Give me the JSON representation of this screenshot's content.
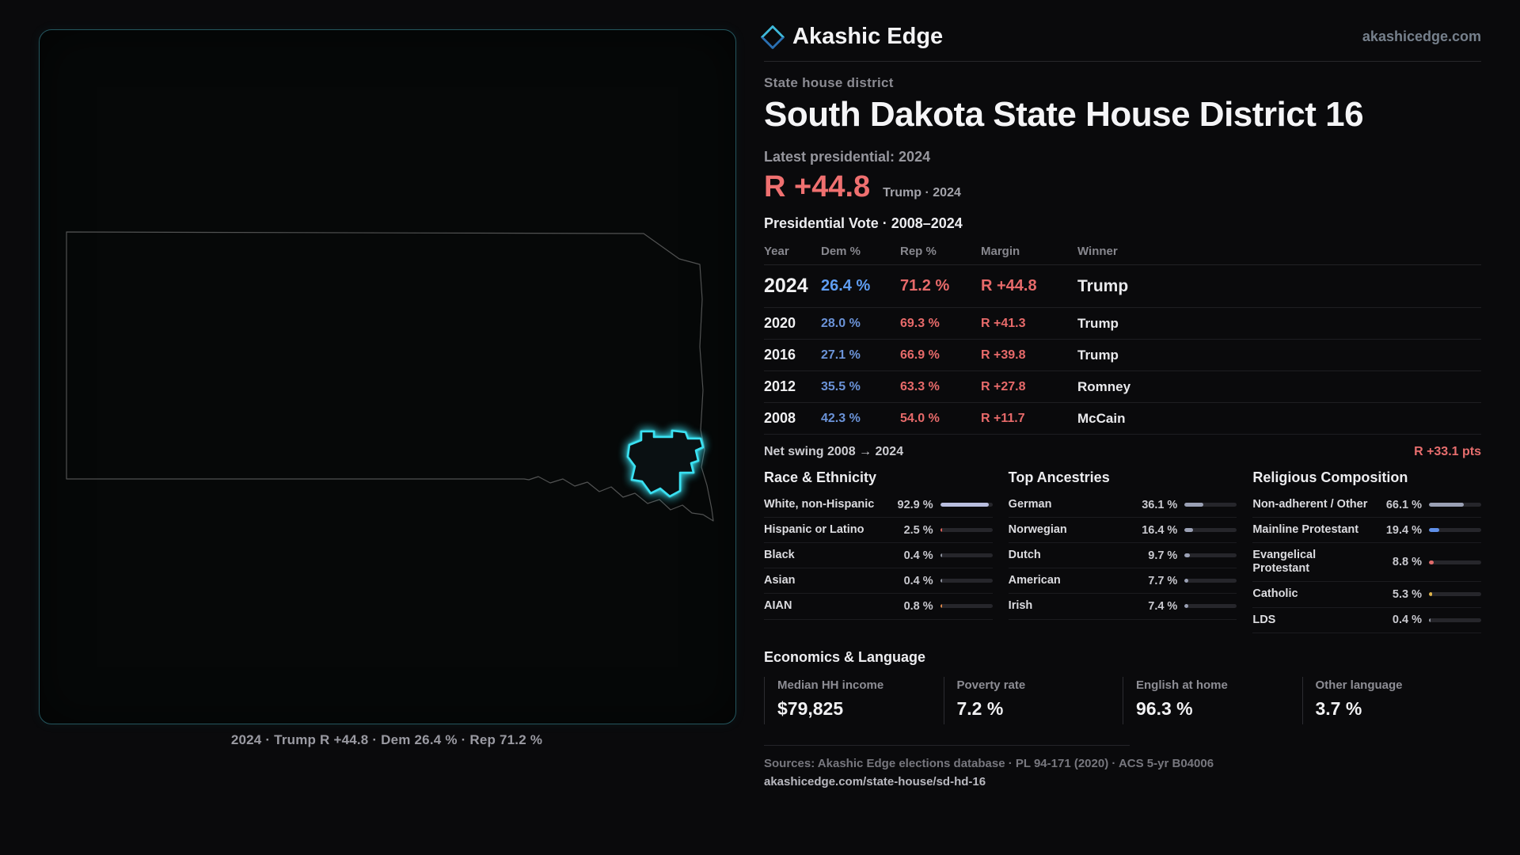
{
  "brand": {
    "name": "Akashic Edge",
    "site": "akashicedge.com"
  },
  "page": {
    "category_label": "State house district",
    "title": "South Dakota State House District 16",
    "latest_label": "Latest presidential: 2024",
    "headline_margin": "R +44.8",
    "headline_sub": "Trump · 2024",
    "table_title": "Presidential Vote · 2008–2024"
  },
  "map": {
    "caption": "2024 · Trump R +44.8 · Dem 26.4 % · Rep 71.2 %"
  },
  "vote_table": {
    "columns": [
      "Year",
      "Dem %",
      "Rep %",
      "Margin",
      "Winner"
    ],
    "rows": [
      {
        "year": "2024",
        "dem": "26.4 %",
        "rep": "71.2 %",
        "margin": "R +44.8",
        "winner": "Trump"
      },
      {
        "year": "2020",
        "dem": "28.0 %",
        "rep": "69.3 %",
        "margin": "R +41.3",
        "winner": "Trump"
      },
      {
        "year": "2016",
        "dem": "27.1 %",
        "rep": "66.9 %",
        "margin": "R +39.8",
        "winner": "Trump"
      },
      {
        "year": "2012",
        "dem": "35.5 %",
        "rep": "63.3 %",
        "margin": "R +27.8",
        "winner": "Romney"
      },
      {
        "year": "2008",
        "dem": "42.3 %",
        "rep": "54.0 %",
        "margin": "R +11.7",
        "winner": "McCain"
      }
    ],
    "net_swing_label": "Net swing 2008 → 2024",
    "net_swing_value": "R +33.1 pts"
  },
  "demographics": [
    {
      "title": "Race & Ethnicity",
      "rows": [
        {
          "label": "White, non-Hispanic",
          "value": "92.9 %",
          "pct": 92.9,
          "color": "#b9bedf"
        },
        {
          "label": "Hispanic or Latino",
          "value": "2.5 %",
          "pct": 2.5,
          "color": "#e0635a"
        },
        {
          "label": "Black",
          "value": "0.4 %",
          "pct": 0.4,
          "color": "#8f939f"
        },
        {
          "label": "Asian",
          "value": "0.4 %",
          "pct": 0.4,
          "color": "#8f939f"
        },
        {
          "label": "AIAN",
          "value": "0.8 %",
          "pct": 0.8,
          "color": "#e0894a"
        }
      ]
    },
    {
      "title": "Top Ancestries",
      "rows": [
        {
          "label": "German",
          "value": "36.1 %",
          "pct": 36.1,
          "color": "#9aa0b4"
        },
        {
          "label": "Norwegian",
          "value": "16.4 %",
          "pct": 16.4,
          "color": "#9aa0b4"
        },
        {
          "label": "Dutch",
          "value": "9.7 %",
          "pct": 9.7,
          "color": "#9aa0b4"
        },
        {
          "label": "American",
          "value": "7.7 %",
          "pct": 7.7,
          "color": "#9aa0b4"
        },
        {
          "label": "Irish",
          "value": "7.4 %",
          "pct": 7.4,
          "color": "#9aa0b4"
        }
      ]
    },
    {
      "title": "Religious Composition",
      "rows": [
        {
          "label": "Non-adherent / Other",
          "value": "66.1 %",
          "pct": 66.1,
          "color": "#9aa0b4"
        },
        {
          "label": "Mainline Protestant",
          "value": "19.4 %",
          "pct": 19.4,
          "color": "#5f8fe8"
        },
        {
          "label": "Evangelical Protestant",
          "value": "8.8 %",
          "pct": 8.8,
          "color": "#e06a6a"
        },
        {
          "label": "Catholic",
          "value": "5.3 %",
          "pct": 5.3,
          "color": "#e0b44a"
        },
        {
          "label": "LDS",
          "value": "0.4 %",
          "pct": 0.4,
          "color": "#8f939f"
        }
      ]
    }
  ],
  "economics": {
    "title": "Economics & Language",
    "stats": [
      {
        "label": "Median HH income",
        "value": "$79,825"
      },
      {
        "label": "Poverty rate",
        "value": "7.2 %"
      },
      {
        "label": "English at home",
        "value": "96.3 %"
      },
      {
        "label": "Other language",
        "value": "3.7 %"
      }
    ]
  },
  "footer": {
    "sources": "Sources: Akashic Edge elections database · PL 94-171 (2020) · ACS 5-yr B04006",
    "permalink": "akashicedge.com/state-house/sd-hd-16"
  },
  "colors": {
    "republican": "#ef6b6b",
    "democrat": "#5f9df2",
    "district_accent": "#3ae1f2"
  }
}
